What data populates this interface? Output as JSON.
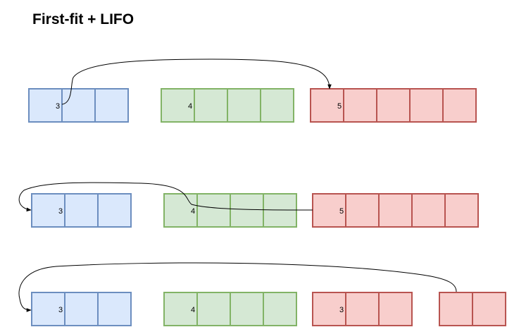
{
  "title": "First-fit + LIFO",
  "colors": {
    "blue_fill": "#dae8fc",
    "blue_stroke": "#6c8ebf",
    "green_fill": "#d5e8d4",
    "green_stroke": "#82b366",
    "red_fill": "#f8cecc",
    "red_stroke": "#b85450",
    "arrow": "#000000"
  },
  "rows": [
    {
      "blocks": [
        {
          "color": "blue",
          "cells": 3,
          "label": "3"
        },
        {
          "color": "green",
          "cells": 4,
          "label": "4"
        },
        {
          "color": "red",
          "cells": 5,
          "label": "5"
        }
      ]
    },
    {
      "blocks": [
        {
          "color": "blue",
          "cells": 3,
          "label": "3"
        },
        {
          "color": "green",
          "cells": 4,
          "label": "4"
        },
        {
          "color": "red",
          "cells": 5,
          "label": "5"
        }
      ]
    },
    {
      "blocks": [
        {
          "color": "blue",
          "cells": 3,
          "label": "3"
        },
        {
          "color": "green",
          "cells": 4,
          "label": "4"
        },
        {
          "color": "red",
          "cells": 3,
          "label": "3"
        },
        {
          "color": "red",
          "cells": 2,
          "label": ""
        }
      ]
    }
  ]
}
